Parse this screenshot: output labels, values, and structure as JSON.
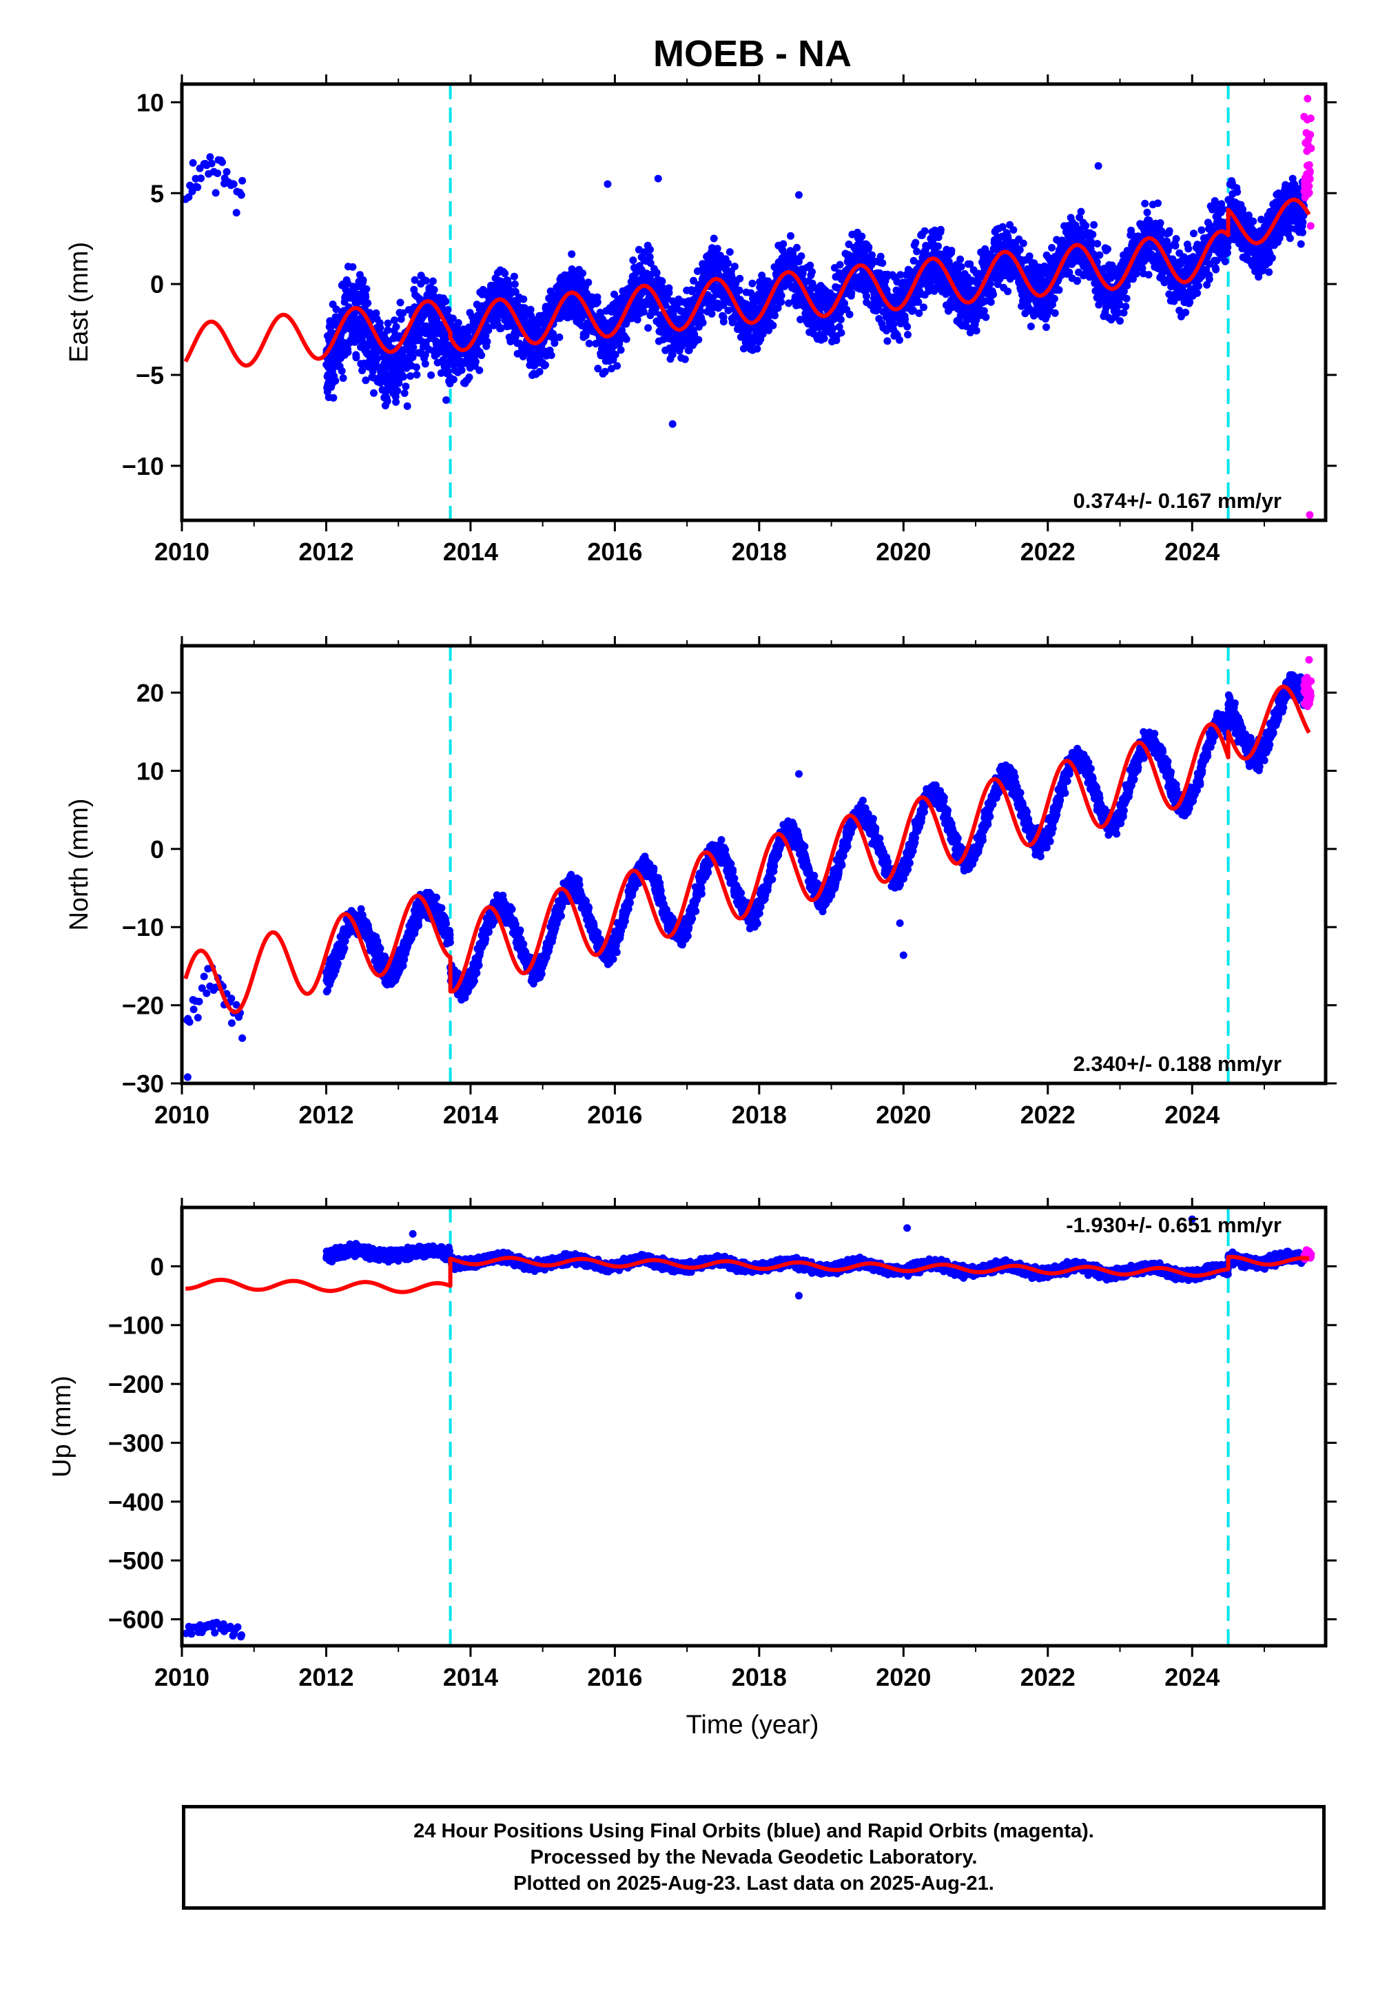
{
  "title": "MOEB - NA",
  "colors": {
    "final": "#0000ff",
    "rapid": "#ff00ff",
    "model": "#ff0000",
    "offset": "#00e5ee",
    "frame": "#000000"
  },
  "xlabel": "Time (year)",
  "footer": {
    "line1": "24 Hour Positions Using Final Orbits (blue) and Rapid Orbits (magenta).",
    "line2": "Processed by the Nevada Geodetic Laboratory.",
    "line3": "Plotted on 2025-Aug-23. Last data on 2025-Aug-21."
  },
  "chart_data": [
    {
      "type": "scatter",
      "ylabel": "East (mm)",
      "xlim": [
        2010,
        2025.85
      ],
      "ylim": [
        -13,
        11
      ],
      "xticks": [
        2010,
        2012,
        2014,
        2016,
        2018,
        2020,
        2022,
        2024
      ],
      "yticks": [
        -10,
        -5,
        0,
        5,
        10
      ],
      "rate_label": "0.374+/- 0.167 mm/yr",
      "offsets": [
        2013.72,
        2024.5
      ],
      "series": [
        {
          "style": "final",
          "segments": [
            {
              "x0": 2010.05,
              "x1": 2010.85,
              "base": 5.5,
              "amp": 0.7,
              "noise": 1.4,
              "n": 34
            },
            {
              "x0": 2012.0,
              "x1": 2013.72,
              "base": -3.2,
              "amp": 1.3,
              "noise": 2.4,
              "n": 620
            },
            {
              "x0": 2013.72,
              "x1": 2024.5,
              "base": -2.4,
              "slope": 0.374,
              "amp": 1.3,
              "noise": 1.7,
              "n": 3600
            },
            {
              "x0": 2024.5,
              "x1": 2025.55,
              "base": 3.2,
              "amp": 1.1,
              "noise": 1.5,
              "n": 420
            }
          ],
          "outliers": [
            [
              2016.8,
              -7.7
            ],
            [
              2018.55,
              4.9
            ],
            [
              2022.7,
              6.5
            ],
            [
              2015.9,
              5.5
            ],
            [
              2016.6,
              5.8
            ]
          ]
        },
        {
          "style": "rapid",
          "segments": [
            {
              "x0": 2025.55,
              "x1": 2025.65,
              "base": 6.5,
              "amp": 0,
              "noise": 3.0,
              "n": 30
            }
          ],
          "outliers": [
            [
              2025.63,
              -12.7
            ],
            [
              2025.6,
              10.2
            ]
          ]
        }
      ],
      "model": [
        {
          "x0": 2010.05,
          "x1": 2013.72,
          "base": -3.5,
          "slope": 0.374,
          "amp": 1.3,
          "phase": 0.15
        },
        {
          "x0": 2013.72,
          "x1": 2024.5,
          "base": -2.4,
          "slope": 0.374,
          "amp": 1.3,
          "phase": 0.15
        },
        {
          "x0": 2024.5,
          "x1": 2025.62,
          "base": 3.2,
          "slope": 0.374,
          "amp": 1.1,
          "phase": 0.15
        }
      ]
    },
    {
      "type": "scatter",
      "ylabel": "North (mm)",
      "xlim": [
        2010,
        2025.85
      ],
      "ylim": [
        -30,
        26
      ],
      "xticks": [
        2010,
        2012,
        2014,
        2016,
        2018,
        2020,
        2022,
        2024
      ],
      "yticks": [
        -30,
        -20,
        -10,
        0,
        10,
        20
      ],
      "rate_label": "2.340+/- 0.188 mm/yr",
      "offsets": [
        2013.72,
        2024.5
      ],
      "series": [
        {
          "style": "final",
          "segments": [
            {
              "x0": 2010.05,
              "x1": 2010.85,
              "base": -21,
              "slope": 2.34,
              "amp": 3.5,
              "noise": 2.0,
              "n": 30
            },
            {
              "x0": 2012.0,
              "x1": 2013.72,
              "base": -14,
              "slope": 2.34,
              "amp": 3.8,
              "noise": 1.6,
              "n": 600
            },
            {
              "x0": 2013.72,
              "x1": 2024.5,
              "base": -13.5,
              "slope": 2.34,
              "amp": 4.8,
              "noise": 1.4,
              "n": 3600
            },
            {
              "x0": 2024.5,
              "x1": 2025.55,
              "base": 15,
              "slope": 2.34,
              "amp": 4.0,
              "noise": 1.6,
              "n": 420
            }
          ],
          "outliers": [
            [
              2010.08,
              -29.2
            ],
            [
              2020.0,
              -13.6
            ],
            [
              2019.95,
              -9.5
            ],
            [
              2018.55,
              9.6
            ]
          ]
        },
        {
          "style": "rapid",
          "segments": [
            {
              "x0": 2025.55,
              "x1": 2025.65,
              "base": 20,
              "amp": 0,
              "noise": 2.0,
              "n": 30
            }
          ],
          "outliers": [
            [
              2025.62,
              24.2
            ]
          ]
        }
      ],
      "model": [
        {
          "x0": 2010.05,
          "x1": 2013.72,
          "base": -18,
          "slope": 2.34,
          "amp": 4.5,
          "phase": 0.0
        },
        {
          "x0": 2013.72,
          "x1": 2024.5,
          "base": -13.5,
          "slope": 2.34,
          "amp": 4.8,
          "phase": 0.0
        },
        {
          "x0": 2024.5,
          "x1": 2025.62,
          "base": 15,
          "slope": 2.34,
          "amp": 4.0,
          "phase": 0.0
        }
      ]
    },
    {
      "type": "scatter",
      "ylabel": "Up (mm)",
      "xlim": [
        2010,
        2025.85
      ],
      "ylim": [
        -645,
        100
      ],
      "xticks": [
        2010,
        2012,
        2014,
        2016,
        2018,
        2020,
        2022,
        2024
      ],
      "yticks": [
        -600,
        -500,
        -400,
        -300,
        -200,
        -100,
        0
      ],
      "rate_label": "-1.930+/- 0.651 mm/yr",
      "offsets": [
        2013.72,
        2024.5
      ],
      "series": [
        {
          "style": "final",
          "segments": [
            {
              "x0": 2010.05,
              "x1": 2010.85,
              "base": -618,
              "amp": 5,
              "noise": 10,
              "n": 30
            },
            {
              "x0": 2012.0,
              "x1": 2013.72,
              "base": 22,
              "amp": 4,
              "noise": 9,
              "n": 520
            },
            {
              "x0": 2013.72,
              "x1": 2024.5,
              "base": 10,
              "slope": -1.93,
              "amp": 6,
              "noise": 8,
              "n": 3400
            },
            {
              "x0": 2024.5,
              "x1": 2025.55,
              "base": 10,
              "amp": 6,
              "noise": 9,
              "n": 380
            }
          ],
          "outliers": [
            [
              2020.05,
              65
            ],
            [
              2018.55,
              -50
            ],
            [
              2024.0,
              80
            ],
            [
              2013.2,
              55
            ]
          ]
        },
        {
          "style": "rapid",
          "segments": [
            {
              "x0": 2025.55,
              "x1": 2025.65,
              "base": 20,
              "amp": 0,
              "noise": 8,
              "n": 25
            }
          ],
          "outliers": []
        }
      ],
      "model": [
        {
          "x0": 2010.05,
          "x1": 2013.72,
          "base": -30,
          "slope": -1.93,
          "amp": 8,
          "phase": 0.3
        },
        {
          "x0": 2013.72,
          "x1": 2024.5,
          "base": 10,
          "slope": -1.93,
          "amp": 6,
          "phase": 0.3
        },
        {
          "x0": 2024.5,
          "x1": 2025.62,
          "base": 10,
          "slope": -1.93,
          "amp": 6,
          "phase": 0.3
        }
      ]
    }
  ]
}
